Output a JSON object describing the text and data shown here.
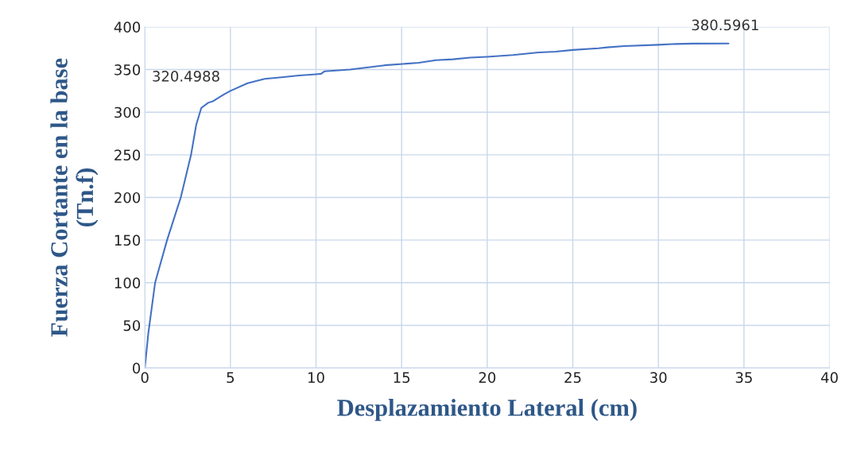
{
  "chart_data": {
    "type": "line",
    "xlabel": "Desplazamiento Lateral (cm)",
    "ylabel": "Fuerza Cortante en la base\n(Tn.f)",
    "x": [
      0,
      0.2,
      0.6,
      1.3,
      2.1,
      2.7,
      3.0,
      3.3,
      3.7,
      4.0,
      4.6,
      5.0,
      6.0,
      7.0,
      8.0,
      9.0,
      10.0,
      10.3,
      10.5,
      12.0,
      14.0,
      16.0,
      17.0,
      18.0,
      19.0,
      20.0,
      21.5,
      23.0,
      24.0,
      25.0,
      26.5,
      27.0,
      28.0,
      30.0,
      31.0,
      32.0,
      34.1
    ],
    "series": [
      {
        "color": "#4472c4",
        "values": [
          0,
          40,
          100,
          150,
          200,
          250,
          285,
          305,
          311,
          313,
          320.5,
          325,
          334,
          339,
          341,
          343,
          344.5,
          345,
          348,
          350,
          355,
          358,
          361,
          362,
          364,
          365,
          367,
          370,
          371,
          373,
          375,
          376,
          377.5,
          379,
          380,
          380.4,
          380.6
        ]
      }
    ],
    "annotations": [
      {
        "text": "320.4988",
        "x": 4.6,
        "y": 320.5
      },
      {
        "text": "380.5961",
        "x": 34.1,
        "y": 380.6
      }
    ],
    "xlim": [
      0,
      40
    ],
    "xticks": [
      0,
      5,
      10,
      15,
      20,
      25,
      30,
      35,
      40
    ],
    "ylim": [
      0,
      400
    ],
    "yticks": [
      0,
      50,
      100,
      150,
      200,
      250,
      300,
      350,
      400
    ],
    "grid": true,
    "legend": false,
    "marker": "none",
    "line_style": "solid"
  }
}
